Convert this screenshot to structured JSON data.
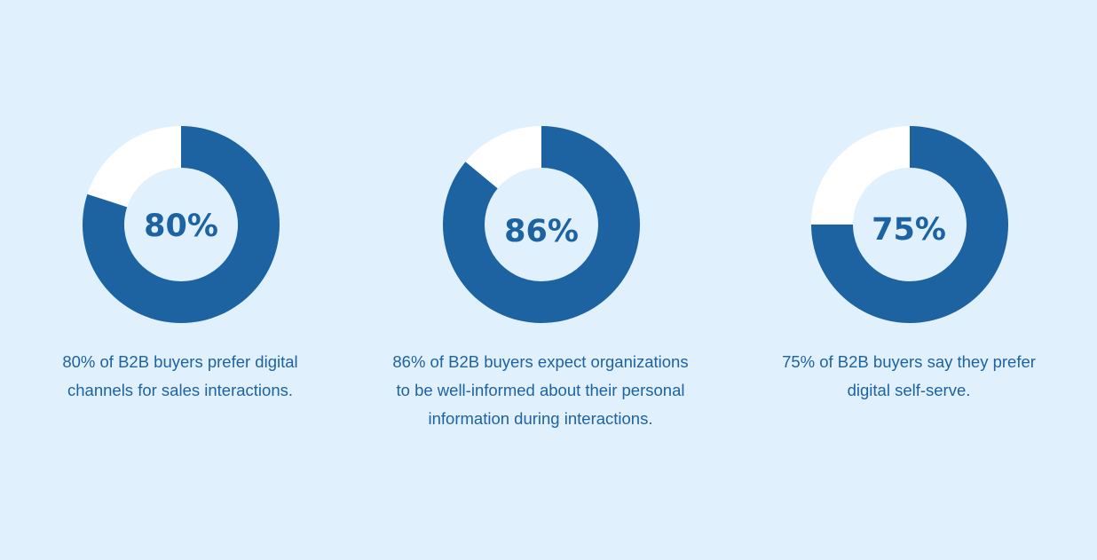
{
  "colors": {
    "background": "#e1f0fd",
    "fill": "#1d63a1",
    "remainder": "#ffffff",
    "text": "#1d63a1"
  },
  "chart_data": [
    {
      "type": "pie",
      "variant": "donut",
      "label": "80%",
      "values": [
        80,
        20
      ],
      "colors": [
        "#1d63a1",
        "#ffffff"
      ],
      "caption_lines": [
        "80% of B2B buyers prefer digital",
        "channels for sales interactions."
      ]
    },
    {
      "type": "pie",
      "variant": "donut",
      "label": "86%",
      "values": [
        86,
        14
      ],
      "colors": [
        "#1d63a1",
        "#ffffff"
      ],
      "caption_lines": [
        "86% of B2B buyers expect organizations",
        "to be well-informed about their personal",
        "information during interactions."
      ]
    },
    {
      "type": "pie",
      "variant": "donut",
      "label": "75%",
      "values": [
        75,
        25
      ],
      "colors": [
        "#1d63a1",
        "#ffffff"
      ],
      "caption_lines": [
        "75% of B2B buyers say they prefer",
        "digital self-serve."
      ]
    }
  ]
}
